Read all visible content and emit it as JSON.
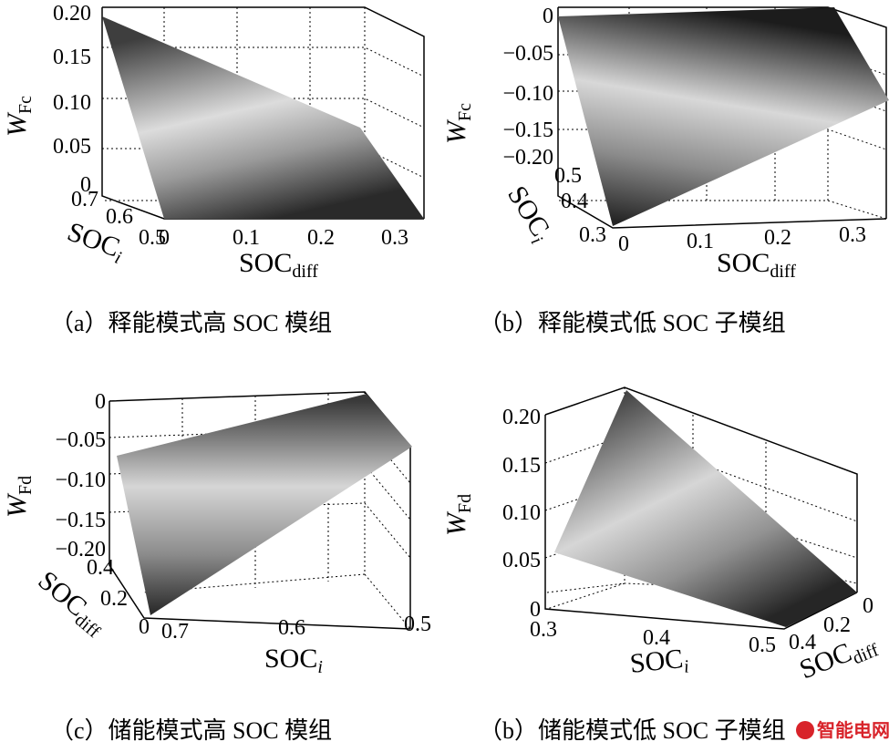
{
  "chart_data": [
    {
      "type": "surface",
      "caption": "（a）释能模式高 SOC 模组",
      "zlabel": "W",
      "zlabel_sub": "Fc",
      "xlabel": "SOC",
      "xlabel_sub": "diff",
      "ylabel": "SOC",
      "ylabel_sub": "i",
      "z_ticks": [
        "0.20",
        "0.15",
        "0.10",
        "0.05",
        "0"
      ],
      "x_ticks": [
        "0",
        "0.1",
        "0.2",
        "0.3"
      ],
      "y_ticks": [
        "0.7",
        "0.6",
        "0.5"
      ],
      "zlim": [
        0,
        0.2
      ],
      "xlim": [
        0,
        0.35
      ],
      "ylim": [
        0.5,
        0.7
      ],
      "surface_corners": [
        {
          "soc_diff": 0,
          "soc_i": 0.7,
          "w": 0.2
        },
        {
          "soc_diff": 0.35,
          "soc_i": 0.7,
          "w": 0
        },
        {
          "soc_diff": 0.35,
          "soc_i": 0.5,
          "w": 0
        },
        {
          "soc_diff": 0,
          "soc_i": 0.5,
          "w": 0
        }
      ]
    },
    {
      "type": "surface",
      "caption": "（b）释能模式低 SOC 子模组",
      "zlabel": "W",
      "zlabel_sub": "Fc",
      "xlabel": "SOC",
      "xlabel_sub": "diff",
      "ylabel": "SOC",
      "ylabel_sub": "i",
      "z_ticks": [
        "0",
        "−0.05",
        "−0.10",
        "−0.15",
        "−0.20"
      ],
      "x_ticks": [
        "0",
        "0.1",
        "0.2",
        "0.3"
      ],
      "y_ticks": [
        "0.5",
        "0.4",
        "0.3"
      ],
      "zlim": [
        -0.2,
        0
      ],
      "xlim": [
        0,
        0.35
      ],
      "ylim": [
        0.3,
        0.5
      ],
      "surface_corners": [
        {
          "soc_diff": 0,
          "soc_i": 0.5,
          "w": 0
        },
        {
          "soc_diff": 0.35,
          "soc_i": 0.5,
          "w": 0
        },
        {
          "soc_diff": 0.35,
          "soc_i": 0.3,
          "w": 0
        },
        {
          "soc_diff": 0,
          "soc_i": 0.3,
          "w": -0.2
        }
      ]
    },
    {
      "type": "surface",
      "caption": "（c）储能模式高 SOC 模组",
      "zlabel": "W",
      "zlabel_sub": "Fd",
      "xlabel": "SOC",
      "xlabel_sub": "i",
      "ylabel": "SOC",
      "ylabel_sub": "diff",
      "z_ticks": [
        "0",
        "−0.05",
        "−0.10",
        "−0.15",
        "−0.20"
      ],
      "x_ticks": [
        "0.7",
        "0.6",
        "0.5"
      ],
      "y_ticks": [
        "0.4",
        "0.2",
        "0"
      ],
      "zlim": [
        -0.2,
        0
      ],
      "xlim": [
        0.5,
        0.7
      ],
      "ylim": [
        0,
        0.4
      ],
      "surface_corners": [
        {
          "soc_i": 0.7,
          "soc_diff": 0,
          "w": -0.2
        },
        {
          "soc_i": 0.5,
          "soc_diff": 0,
          "w": 0
        },
        {
          "soc_i": 0.5,
          "soc_diff": 0.4,
          "w": 0
        },
        {
          "soc_i": 0.7,
          "soc_diff": 0.4,
          "w": 0
        }
      ]
    },
    {
      "type": "surface",
      "caption": "（b）储能模式低 SOC 子模组",
      "zlabel": "W",
      "zlabel_sub": "Fd",
      "xlabel": "SOC",
      "xlabel_sub": "i",
      "ylabel": "SOC",
      "ylabel_sub": "diff",
      "z_ticks": [
        "0.20",
        "0.15",
        "0.10",
        "0.05",
        "0"
      ],
      "x_ticks": [
        "0.3",
        "0.4",
        "0.5"
      ],
      "y_ticks": [
        "0.4",
        "0.2",
        "0"
      ],
      "zlim": [
        0,
        0.2
      ],
      "xlim": [
        0.3,
        0.5
      ],
      "ylim": [
        0,
        0.4
      ],
      "surface_corners": [
        {
          "soc_i": 0.3,
          "soc_diff": 0.4,
          "w": 0.2
        },
        {
          "soc_i": 0.5,
          "soc_diff": 0.4,
          "w": 0
        },
        {
          "soc_i": 0.5,
          "soc_diff": 0,
          "w": 0
        },
        {
          "soc_i": 0.3,
          "soc_diff": 0,
          "w": 0
        }
      ]
    }
  ],
  "watermark": "智能电网"
}
